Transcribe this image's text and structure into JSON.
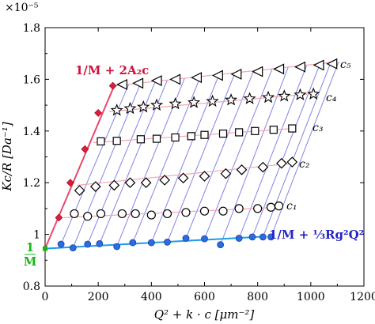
{
  "chart_data": {
    "type": "scatter",
    "exponent_label": "×10⁻⁵",
    "xlabel": "Q² + k · c [μm⁻²]",
    "ylabel": "Kc/R [Da⁻¹]",
    "xlim": [
      0,
      1200
    ],
    "ylim": [
      0.8,
      1.8
    ],
    "x_ticks": [
      "0",
      "200",
      "400",
      "600",
      "800",
      "1000",
      "1200"
    ],
    "y_ticks": [
      "0.8",
      "1",
      "1.2",
      "1.4",
      "1.6",
      "1.8"
    ],
    "grid": false,
    "series": [
      {
        "name": "c₅",
        "marker": "triangle-left",
        "x": [
          290,
          350,
          420,
          490,
          570,
          650,
          720,
          800,
          880,
          960,
          1030,
          1080
        ],
        "y": [
          1.58,
          1.585,
          1.595,
          1.6,
          1.607,
          1.615,
          1.62,
          1.63,
          1.64,
          1.648,
          1.655,
          1.66
        ]
      },
      {
        "name": "c₄",
        "marker": "star",
        "x": [
          270,
          320,
          370,
          420,
          490,
          560,
          630,
          700,
          770,
          840,
          900,
          960,
          1010
        ],
        "y": [
          1.48,
          1.487,
          1.493,
          1.5,
          1.505,
          1.51,
          1.515,
          1.52,
          1.525,
          1.53,
          1.535,
          1.54,
          1.543
        ]
      },
      {
        "name": "c₃",
        "marker": "square",
        "x": [
          210,
          270,
          360,
          420,
          490,
          550,
          600,
          670,
          730,
          790,
          860,
          930
        ],
        "y": [
          1.36,
          1.362,
          1.368,
          1.37,
          1.375,
          1.38,
          1.385,
          1.39,
          1.395,
          1.4,
          1.405,
          1.41
        ]
      },
      {
        "name": "c₂",
        "marker": "diamond",
        "x": [
          130,
          190,
          260,
          320,
          380,
          450,
          520,
          600,
          680,
          740,
          820,
          890,
          930
        ],
        "y": [
          1.17,
          1.185,
          1.19,
          1.2,
          1.2,
          1.21,
          1.218,
          1.225,
          1.235,
          1.25,
          1.26,
          1.275,
          1.28
        ]
      },
      {
        "name": "c₁",
        "marker": "circle-open",
        "x": [
          110,
          160,
          210,
          290,
          340,
          400,
          460,
          530,
          600,
          670,
          730,
          800,
          850,
          880
        ],
        "y": [
          1.08,
          1.07,
          1.08,
          1.08,
          1.08,
          1.075,
          1.08,
          1.085,
          1.09,
          1.09,
          1.1,
          1.1,
          1.105,
          1.11
        ]
      },
      {
        "name": "1/M + ⅓Rg²Q²",
        "marker": "circle-blue",
        "x": [
          60,
          105,
          160,
          205,
          270,
          330,
          400,
          460,
          530,
          600,
          660,
          730,
          780,
          820,
          850
        ],
        "y": [
          0.962,
          0.948,
          0.962,
          0.964,
          0.953,
          0.968,
          0.968,
          0.97,
          0.985,
          0.983,
          0.96,
          0.985,
          0.99,
          0.99,
          0.99
        ]
      },
      {
        "name": "1/M + 2A₂c",
        "marker": "diamond-red",
        "x": [
          52,
          95,
          150,
          200,
          255
        ],
        "y": [
          1.065,
          1.2,
          1.33,
          1.47,
          1.575
        ]
      }
    ],
    "fit_lines": [
      {
        "name": "c₅",
        "x": [
          260,
          1075
        ],
        "y": [
          1.575,
          1.665
        ]
      },
      {
        "name": "c₄",
        "x": [
          240,
          1010
        ],
        "y": [
          1.475,
          1.545
        ]
      },
      {
        "name": "c₃",
        "x": [
          180,
          940
        ],
        "y": [
          1.355,
          1.41
        ]
      },
      {
        "name": "c₂",
        "x": [
          120,
          930
        ],
        "y": [
          1.19,
          1.275
        ]
      },
      {
        "name": "c₁",
        "x": [
          70,
          880
        ],
        "y": [
          1.065,
          1.105
        ]
      },
      {
        "name": "Q²",
        "x": [
          0,
          830
        ],
        "y": [
          0.945,
          0.992
        ]
      },
      {
        "name": "c",
        "x": [
          0,
          260
        ],
        "y": [
          0.945,
          1.575
        ]
      }
    ],
    "intercept": {
      "label_num": "1",
      "label_den": "M",
      "x": 0,
      "y": 0.945
    },
    "colors": {
      "red_fit": "#e8496b",
      "red_marker": "#e01b3c",
      "blue_fit": "#1e9be8",
      "blue_marker": "#2a6de0",
      "pink_series": "#f4a6ae",
      "violet_grid": "#8383e6",
      "green_intercept": "#19b319",
      "blue_text": "#2424c8",
      "red_text": "#d0123c"
    },
    "annotations": {
      "red_formula": "1/M + 2A₂c",
      "blue_formula": "1/M + ⅓Rg²Q²"
    },
    "series_labels": [
      "c₅",
      "c₄",
      "c₃",
      "c₂",
      "c₁"
    ]
  }
}
